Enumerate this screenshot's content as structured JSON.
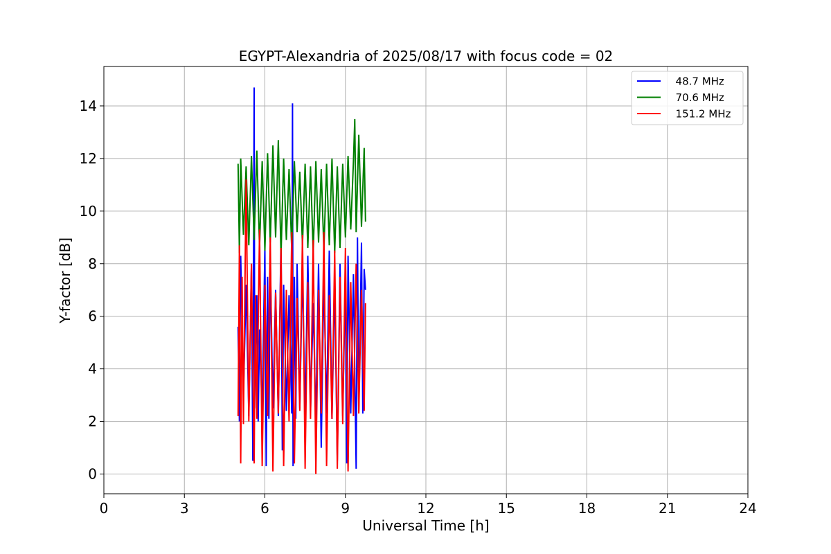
{
  "chart_data": {
    "type": "line",
    "title": "EGYPT-Alexandria of 2025/08/17 with focus code = 02",
    "xlabel": "Universal Time [h]",
    "ylabel": "Y-factor [dB]",
    "xlim": [
      0,
      24
    ],
    "ylim": [
      -0.75,
      15.5
    ],
    "xticks": [
      0,
      3,
      6,
      9,
      12,
      15,
      18,
      21,
      24
    ],
    "yticks": [
      0,
      2,
      4,
      6,
      8,
      10,
      12,
      14
    ],
    "grid": true,
    "legend_position": "top-right",
    "series": [
      {
        "name": "  48.7 MHz",
        "color": "#0000ff",
        "x": [
          5.0,
          5.05,
          5.1,
          5.2,
          5.3,
          5.4,
          5.5,
          5.55,
          5.6,
          5.62,
          5.7,
          5.75,
          5.8,
          5.9,
          6.0,
          6.05,
          6.1,
          6.15,
          6.2,
          6.3,
          6.4,
          6.5,
          6.6,
          6.65,
          6.7,
          6.8,
          6.9,
          7.0,
          7.03,
          7.05,
          7.1,
          7.15,
          7.2,
          7.3,
          7.4,
          7.5,
          7.6,
          7.7,
          7.8,
          7.9,
          8.0,
          8.1,
          8.2,
          8.3,
          8.4,
          8.5,
          8.6,
          8.7,
          8.8,
          8.9,
          9.0,
          9.05,
          9.1,
          9.2,
          9.3,
          9.4,
          9.45,
          9.5,
          9.6,
          9.65,
          9.7,
          9.75
        ],
        "values": [
          5.6,
          2.0,
          8.3,
          3.0,
          7.2,
          2.2,
          8.0,
          0.5,
          14.7,
          2.5,
          6.8,
          2.0,
          5.5,
          2.3,
          8.6,
          0.3,
          7.5,
          2.1,
          8.2,
          2.5,
          7.0,
          2.2,
          9.0,
          0.9,
          7.2,
          2.4,
          6.8,
          2.3,
          14.1,
          0.3,
          7.5,
          2.1,
          8.0,
          2.5,
          7.8,
          2.2,
          8.3,
          2.4,
          6.5,
          2.0,
          8.0,
          1.0,
          7.5,
          2.3,
          8.5,
          2.1,
          7.3,
          0.5,
          8.0,
          2.2,
          7.5,
          0.4,
          8.3,
          2.3,
          7.6,
          0.2,
          9.0,
          2.4,
          8.8,
          2.3,
          7.8,
          7.0
        ]
      },
      {
        "name": "  70.6 MHz",
        "color": "#008000",
        "x": [
          5.0,
          5.05,
          5.1,
          5.2,
          5.3,
          5.4,
          5.5,
          5.6,
          5.7,
          5.8,
          5.9,
          6.0,
          6.1,
          6.2,
          6.3,
          6.4,
          6.5,
          6.6,
          6.7,
          6.8,
          6.9,
          7.0,
          7.1,
          7.2,
          7.3,
          7.4,
          7.5,
          7.6,
          7.7,
          7.8,
          7.9,
          8.0,
          8.1,
          8.2,
          8.3,
          8.4,
          8.5,
          8.6,
          8.7,
          8.8,
          8.9,
          9.0,
          9.1,
          9.2,
          9.3,
          9.35,
          9.4,
          9.5,
          9.6,
          9.7,
          9.75
        ],
        "values": [
          11.8,
          8.4,
          12.0,
          9.1,
          11.7,
          8.7,
          12.1,
          8.9,
          12.3,
          8.6,
          11.9,
          8.5,
          12.2,
          8.8,
          12.5,
          9.0,
          12.7,
          8.3,
          12.0,
          8.9,
          11.6,
          8.5,
          11.9,
          9.2,
          11.5,
          8.7,
          11.8,
          8.6,
          11.7,
          8.4,
          11.9,
          8.8,
          11.6,
          8.5,
          11.8,
          8.7,
          12.0,
          8.4,
          11.7,
          8.6,
          11.8,
          9.0,
          12.1,
          9.3,
          11.9,
          13.5,
          9.2,
          12.9,
          9.4,
          12.4,
          9.6
        ]
      },
      {
        "name": "  151.2 MHz",
        "color": "#ff0000",
        "x": [
          5.0,
          5.05,
          5.1,
          5.15,
          5.2,
          5.3,
          5.4,
          5.5,
          5.6,
          5.65,
          5.7,
          5.8,
          5.9,
          6.0,
          6.1,
          6.2,
          6.3,
          6.4,
          6.5,
          6.6,
          6.7,
          6.8,
          6.9,
          7.0,
          7.1,
          7.2,
          7.3,
          7.4,
          7.5,
          7.6,
          7.7,
          7.8,
          7.9,
          8.0,
          8.1,
          8.2,
          8.3,
          8.4,
          8.5,
          8.6,
          8.7,
          8.8,
          8.9,
          9.0,
          9.1,
          9.2,
          9.3,
          9.4,
          9.5,
          9.6,
          9.7,
          9.75
        ],
        "values": [
          2.2,
          8.7,
          0.4,
          7.5,
          1.9,
          11.2,
          2.0,
          8.0,
          0.4,
          6.8,
          2.1,
          9.3,
          0.3,
          7.2,
          2.2,
          9.0,
          0.1,
          6.9,
          2.3,
          8.6,
          0.3,
          7.0,
          2.0,
          9.2,
          0.4,
          6.7,
          2.4,
          9.1,
          0.2,
          7.3,
          2.1,
          8.9,
          0.0,
          7.0,
          2.3,
          9.2,
          0.3,
          6.8,
          2.1,
          8.5,
          0.2,
          7.5,
          1.9,
          8.6,
          0.1,
          7.3,
          2.2,
          8.0,
          2.3,
          7.0,
          2.4,
          6.5
        ]
      }
    ]
  }
}
